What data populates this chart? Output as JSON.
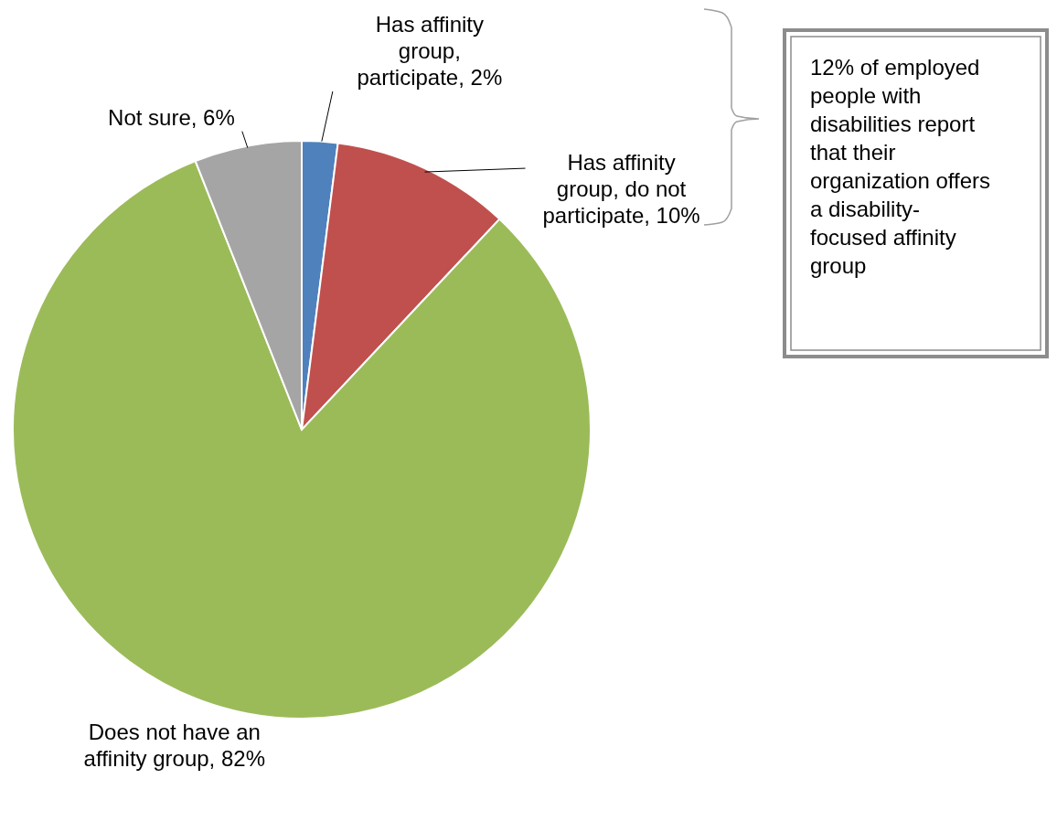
{
  "chart_data": {
    "type": "pie",
    "categories": [
      "Has affinity group, participate",
      "Has affinity group, do not participate",
      "Does not have an affinity group",
      "Not sure"
    ],
    "values": [
      2,
      10,
      82,
      6
    ],
    "value_labels": [
      "2%",
      "10%",
      "82%",
      "6%"
    ],
    "colors": [
      "#4f81bd",
      "#c0504d",
      "#9bbb59",
      "#a5a5a5"
    ],
    "annotations": [
      "12% of employed people with disabilities report that their organization offers a disability-focused affinity group"
    ]
  }
}
